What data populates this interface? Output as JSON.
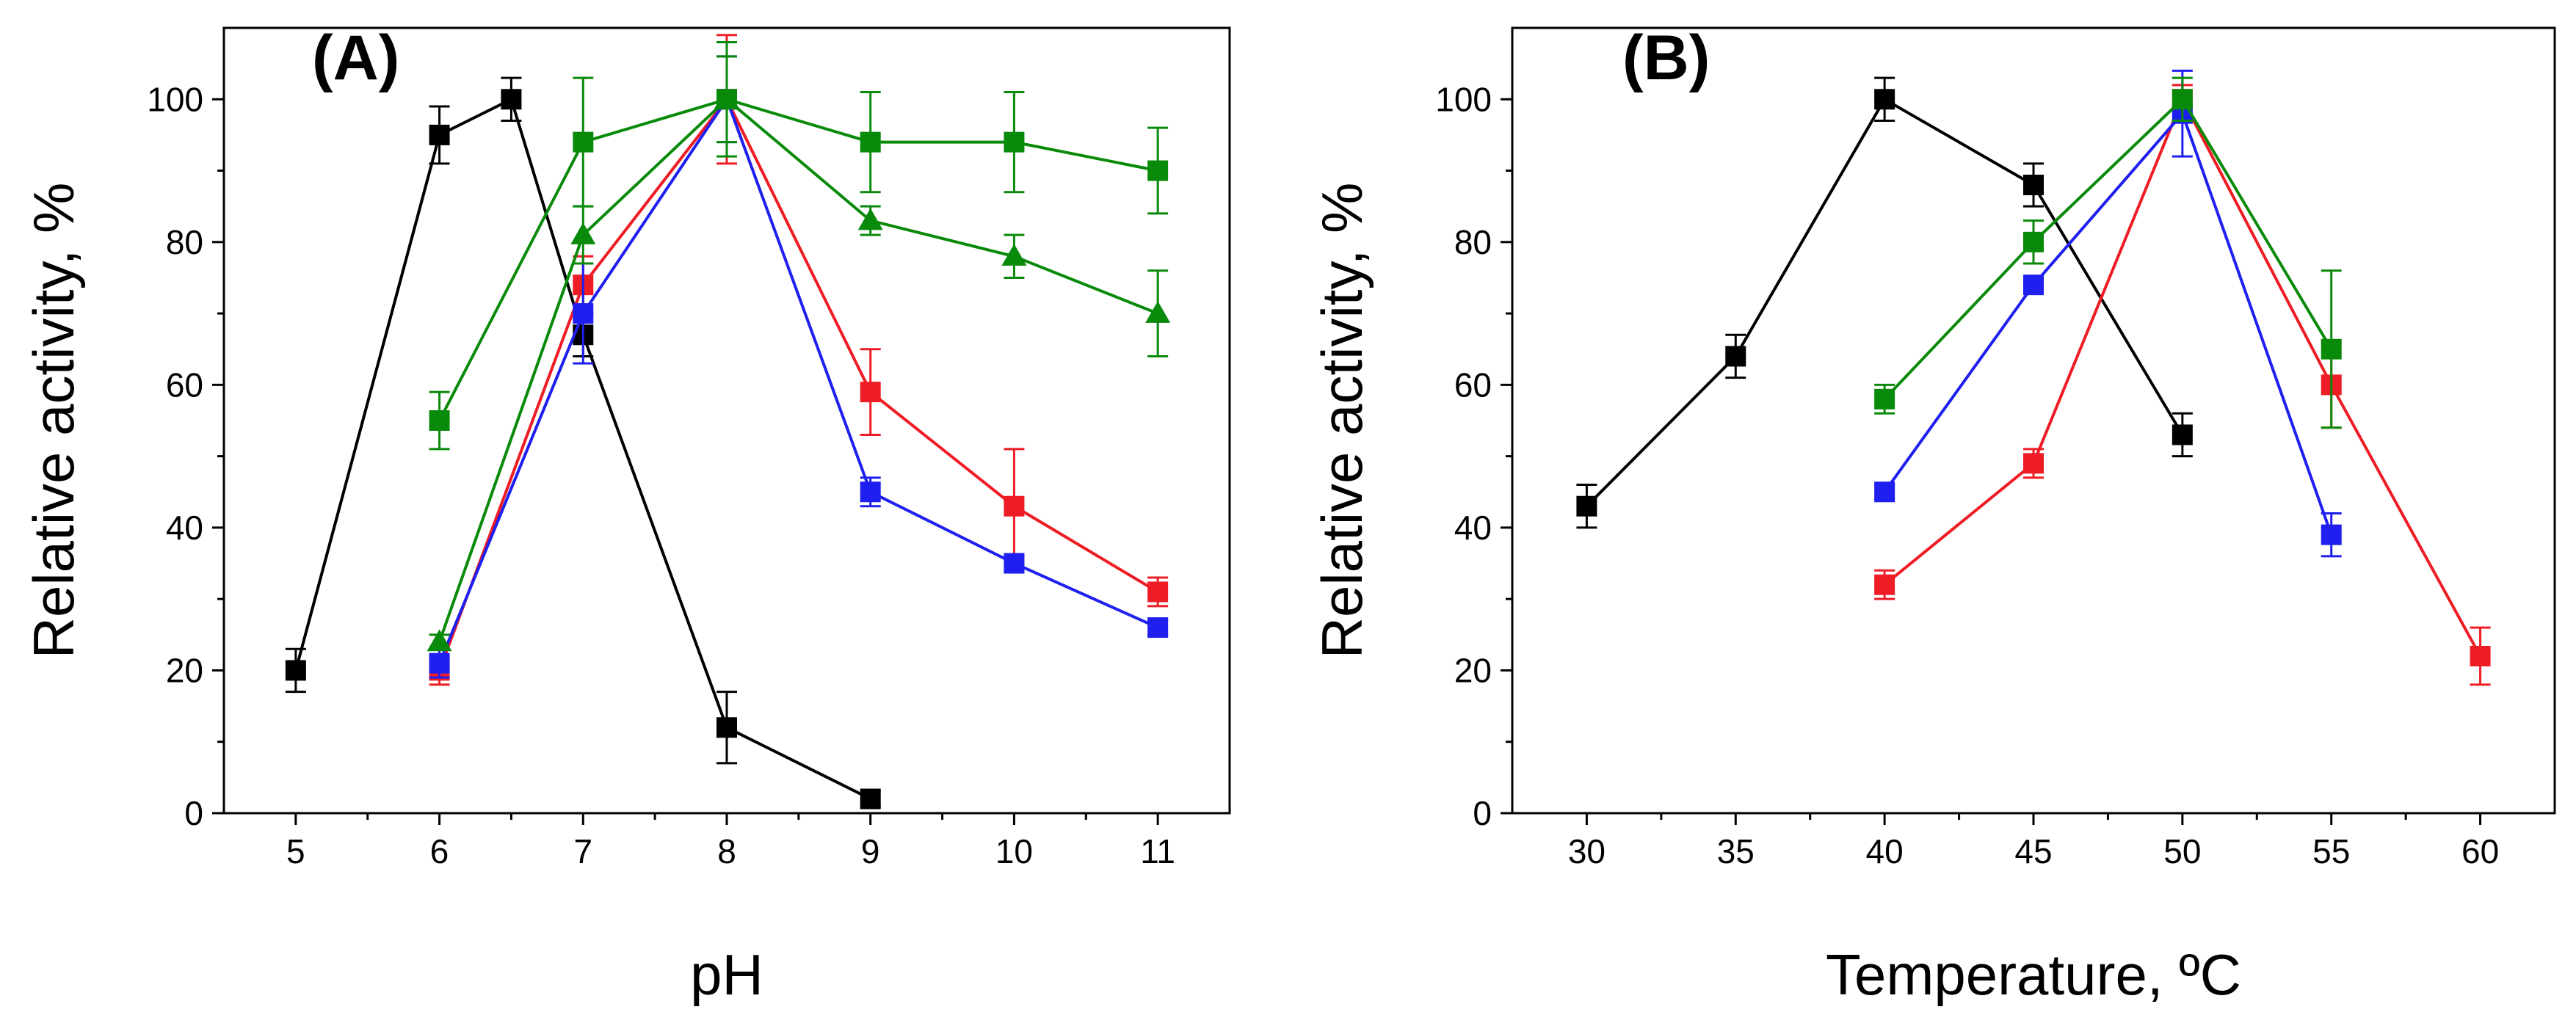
{
  "chart_data": [
    {
      "type": "line",
      "panel_label": "(A)",
      "xlabel": "pH",
      "ylabel": "Relative activity, %",
      "xlim": [
        4.5,
        11.5
      ],
      "ylim": [
        0,
        110
      ],
      "xticks": [
        "5",
        "6",
        "7",
        "8",
        "9",
        "10",
        "11"
      ],
      "yticks": [
        "0",
        "20",
        "40",
        "60",
        "80",
        "100"
      ],
      "grid": false,
      "series": [
        {
          "name": "black squares",
          "color": "#000000",
          "marker": "square",
          "x": [
            5,
            6,
            6.5,
            7,
            8,
            9
          ],
          "y": [
            20,
            95,
            100,
            67,
            12,
            2
          ],
          "err": [
            3,
            4,
            3,
            3,
            5,
            1
          ]
        },
        {
          "name": "red squares",
          "color": "#ee1c24",
          "marker": "square",
          "x": [
            6,
            7,
            8,
            9,
            10,
            11
          ],
          "y": [
            20,
            74,
            100,
            59,
            43,
            31
          ],
          "err": [
            2,
            4,
            9,
            6,
            8,
            2
          ]
        },
        {
          "name": "blue squares",
          "color": "#1f1fef",
          "marker": "square",
          "x": [
            6,
            7,
            8,
            9,
            10,
            11
          ],
          "y": [
            21,
            70,
            100,
            45,
            35,
            26
          ],
          "err": [
            2,
            7,
            6,
            2,
            1,
            1
          ]
        },
        {
          "name": "green squares",
          "color": "#0a8a0a",
          "marker": "square",
          "x": [
            6,
            7,
            8,
            9,
            10,
            11
          ],
          "y": [
            55,
            94,
            100,
            94,
            94,
            90
          ],
          "err": [
            4,
            9,
            8,
            7,
            7,
            6
          ]
        },
        {
          "name": "green triangles",
          "color": "#0a8a0a",
          "marker": "triangle",
          "x": [
            6,
            7,
            8,
            9,
            10,
            11
          ],
          "y": [
            24,
            81,
            100,
            83,
            78,
            70
          ],
          "err": [
            1,
            4,
            6,
            2,
            3,
            6
          ]
        }
      ]
    },
    {
      "type": "line",
      "panel_label": "(B)",
      "xlabel": "Temperature, ºC",
      "ylabel": "Relative activity, %",
      "xlim": [
        27.5,
        62.5
      ],
      "ylim": [
        0,
        110
      ],
      "xticks": [
        "30",
        "35",
        "40",
        "45",
        "50",
        "55",
        "60"
      ],
      "yticks": [
        "0",
        "20",
        "40",
        "60",
        "80",
        "100"
      ],
      "grid": false,
      "series": [
        {
          "name": "black squares",
          "color": "#000000",
          "marker": "square",
          "x": [
            30,
            35,
            40,
            45,
            50
          ],
          "y": [
            43,
            64,
            100,
            88,
            53
          ],
          "err": [
            3,
            3,
            3,
            3,
            3
          ]
        },
        {
          "name": "red squares",
          "color": "#ee1c24",
          "marker": "square",
          "x": [
            40,
            45,
            50,
            55,
            60
          ],
          "y": [
            32,
            49,
            100,
            60,
            22
          ],
          "err": [
            2,
            2,
            2,
            6,
            4
          ]
        },
        {
          "name": "blue squares",
          "color": "#1f1fef",
          "marker": "square",
          "x": [
            40,
            45,
            50,
            55
          ],
          "y": [
            45,
            74,
            98,
            39
          ],
          "err": [
            1,
            1,
            6,
            3
          ]
        },
        {
          "name": "green squares",
          "color": "#0a8a0a",
          "marker": "square",
          "x": [
            40,
            45,
            50,
            55
          ],
          "y": [
            58,
            80,
            100,
            65
          ],
          "err": [
            2,
            3,
            3,
            11
          ]
        }
      ]
    }
  ]
}
